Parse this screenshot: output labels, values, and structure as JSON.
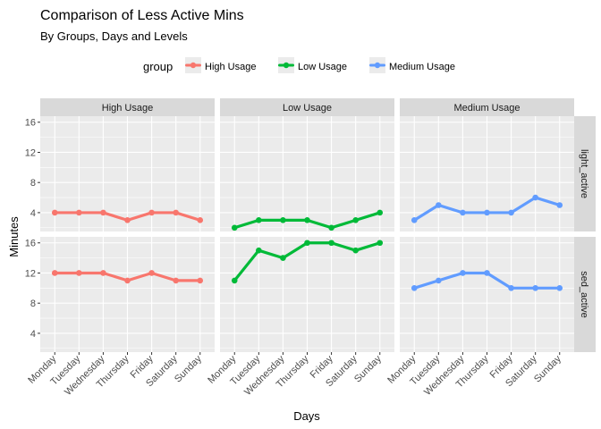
{
  "chart_data": {
    "type": "line",
    "title": "Comparison of Less Active Mins",
    "subtitle": "By Groups, Days and Levels",
    "xlabel": "Days",
    "ylabel": "Minutes",
    "legend": {
      "title": "group",
      "placement": "top",
      "entries": [
        "High Usage",
        "Low Usage",
        "Medium Usage"
      ]
    },
    "colors": {
      "High Usage": "#F8766D",
      "Low Usage": "#00BA38",
      "Medium Usage": "#619CFF",
      "panel_bg": "#EBEBEB",
      "strip_bg": "#D9D9D9",
      "grid": "#FFFFFF"
    },
    "grid": true,
    "facet_columns": [
      "High Usage",
      "Low Usage",
      "Medium Usage"
    ],
    "facet_rows": [
      "light_active",
      "sed_active"
    ],
    "categories": [
      "Monday",
      "Tuesday",
      "Wednesday",
      "Thursday",
      "Friday",
      "Saturday",
      "Sunday"
    ],
    "ylim": [
      1.5,
      16.8
    ],
    "yticks": [
      4,
      8,
      12,
      16
    ],
    "panels": [
      {
        "row": "light_active",
        "group": "High Usage",
        "values": [
          4,
          4,
          4,
          3,
          4,
          4,
          3
        ]
      },
      {
        "row": "light_active",
        "group": "Low Usage",
        "values": [
          2,
          3,
          3,
          3,
          2,
          3,
          4
        ]
      },
      {
        "row": "light_active",
        "group": "Medium Usage",
        "values": [
          3,
          5,
          4,
          4,
          4,
          6,
          5
        ]
      },
      {
        "row": "sed_active",
        "group": "High Usage",
        "values": [
          12,
          12,
          12,
          11,
          12,
          11,
          11
        ]
      },
      {
        "row": "sed_active",
        "group": "Low Usage",
        "values": [
          11,
          15,
          14,
          16,
          16,
          15,
          16
        ]
      },
      {
        "row": "sed_active",
        "group": "Medium Usage",
        "values": [
          10,
          11,
          12,
          12,
          10,
          10,
          10
        ]
      }
    ]
  }
}
